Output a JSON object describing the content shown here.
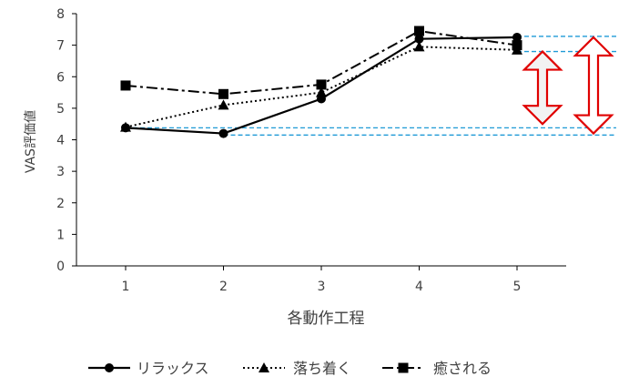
{
  "chart_data": {
    "type": "line",
    "xlabel": "各動作工程",
    "ylabel": "VAS評価値",
    "categories": [
      "1",
      "2",
      "3",
      "4",
      "5"
    ],
    "ylim": [
      0,
      8
    ],
    "yticks": [
      "0",
      "1",
      "2",
      "3",
      "4",
      "5",
      "6",
      "7",
      "8"
    ],
    "grid": false,
    "legend_position": "bottom",
    "series": [
      {
        "name": "リラックス",
        "values": [
          4.38,
          4.2,
          5.3,
          7.2,
          7.25
        ],
        "line_style": "solid",
        "marker": "circle",
        "color": "#000000"
      },
      {
        "name": "落ち着く",
        "values": [
          4.4,
          5.1,
          5.5,
          6.95,
          6.85
        ],
        "line_style": "dotted",
        "marker": "triangle",
        "color": "#000000"
      },
      {
        "name": "癒される",
        "values": [
          5.72,
          5.45,
          5.75,
          7.45,
          7.0
        ],
        "line_style": "dashdot",
        "marker": "square",
        "color": "#000000"
      }
    ],
    "annotations": {
      "reference_line_color": "#1f9ad6",
      "arrow_color": "#e00000",
      "reference_lines": [
        {
          "x_from": "1",
          "y": 4.38
        },
        {
          "x_from": "2",
          "y": 4.15
        },
        {
          "x_from": "5",
          "y": 7.28
        },
        {
          "x_from": "5",
          "y": 6.8
        }
      ],
      "arrows": [
        {
          "y_from": 4.5,
          "y_to": 6.8,
          "style": "outline-filled"
        },
        {
          "y_from": 4.2,
          "y_to": 7.25,
          "style": "outline"
        }
      ]
    }
  }
}
